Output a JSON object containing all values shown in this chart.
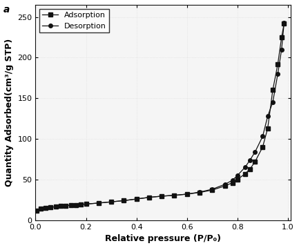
{
  "adsorption_x": [
    0.005,
    0.02,
    0.04,
    0.06,
    0.08,
    0.1,
    0.12,
    0.14,
    0.16,
    0.18,
    0.2,
    0.25,
    0.3,
    0.35,
    0.4,
    0.45,
    0.5,
    0.55,
    0.6,
    0.65,
    0.7,
    0.75,
    0.78,
    0.8,
    0.83,
    0.85,
    0.87,
    0.9,
    0.92,
    0.94,
    0.96,
    0.975,
    0.985
  ],
  "adsorption_y": [
    12.0,
    14.0,
    15.0,
    15.8,
    16.5,
    17.2,
    17.8,
    18.3,
    18.8,
    19.3,
    19.8,
    21.0,
    22.5,
    24.0,
    26.0,
    28.0,
    29.5,
    30.5,
    32.0,
    34.0,
    37.0,
    42.0,
    46.0,
    50.0,
    57.0,
    63.0,
    72.0,
    90.0,
    113.0,
    160.0,
    192.0,
    225.0,
    242.0
  ],
  "desorption_x": [
    0.005,
    0.02,
    0.04,
    0.06,
    0.08,
    0.1,
    0.12,
    0.14,
    0.16,
    0.18,
    0.2,
    0.25,
    0.3,
    0.35,
    0.4,
    0.45,
    0.5,
    0.55,
    0.6,
    0.65,
    0.7,
    0.75,
    0.78,
    0.8,
    0.83,
    0.85,
    0.87,
    0.9,
    0.92,
    0.94,
    0.96,
    0.975,
    0.985
  ],
  "desorption_y": [
    12.0,
    14.0,
    15.0,
    15.8,
    16.5,
    17.2,
    17.8,
    18.3,
    18.8,
    19.3,
    19.8,
    21.0,
    22.5,
    24.0,
    26.0,
    28.0,
    29.5,
    30.5,
    32.0,
    34.5,
    38.0,
    44.0,
    49.0,
    55.0,
    65.0,
    74.0,
    84.0,
    103.0,
    128.0,
    145.0,
    180.0,
    210.0,
    243.0
  ],
  "line_color": "#111111",
  "adsorption_marker": "s",
  "desorption_marker": "o",
  "marker_size": 4,
  "marker_facecolor": "#111111",
  "xlabel": "Relative pressure (P/P₀)",
  "ylabel": "Quantity Adsorbed(cm³/g STP)",
  "xlim": [
    0.0,
    1.01
  ],
  "ylim": [
    0,
    265
  ],
  "xticks": [
    0.0,
    0.2,
    0.4,
    0.6,
    0.8,
    1.0
  ],
  "yticks": [
    0,
    50,
    100,
    150,
    200,
    250
  ],
  "legend_adsorption": "Adsorption",
  "legend_desorption": "Desorption",
  "panel_label": "a",
  "background_color": "#f5f5f5",
  "grid_color": "#d0d0d0",
  "label_fontsize": 9,
  "tick_fontsize": 8,
  "legend_fontsize": 8
}
